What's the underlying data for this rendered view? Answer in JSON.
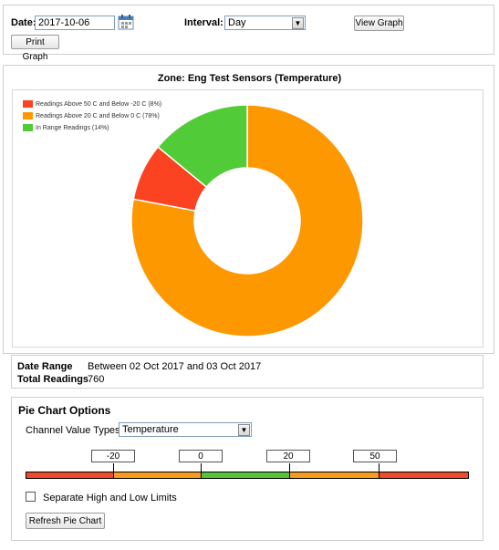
{
  "toolbar": {
    "date_label": "Date:",
    "date_value": "2017-10-06",
    "interval_label": "Interval:",
    "interval_value": "Day",
    "view_graph_label": "View Graph",
    "print_graph_label": "Print Graph"
  },
  "chart_panel": {
    "title": "Zone: Eng Test Sensors (Temperature)"
  },
  "chart_data": {
    "type": "pie",
    "donut": true,
    "legend_position": "top-left",
    "series": [
      {
        "label": "Readings Above 50 C and Below -20 C (8%)",
        "value": 8,
        "color": "#fc4321"
      },
      {
        "label": "Readings Above 20 C and Below 0 C (78%)",
        "value": 78,
        "color": "#fe9800"
      },
      {
        "label": "In Range Readings (14%)",
        "value": 14,
        "color": "#52cb38"
      }
    ]
  },
  "summary": {
    "date_range_label": "Date Range",
    "date_range_value": "Between 02 Oct 2017 and 03 Oct 2017",
    "total_readings_label": "Total Readings",
    "total_readings_value": "760"
  },
  "options": {
    "title": "Pie Chart Options",
    "channel_label": "Channel Value Types",
    "channel_value": "Temperature",
    "limits": [
      "-20",
      "0",
      "20",
      "50"
    ],
    "separate_label": "Separate High and Low Limits",
    "separate_checked": false,
    "refresh_label": "Refresh Pie Chart",
    "bar_colors": {
      "extreme": "#f04a2c",
      "warning": "#f79b1f",
      "in_range": "#55c43b"
    }
  }
}
